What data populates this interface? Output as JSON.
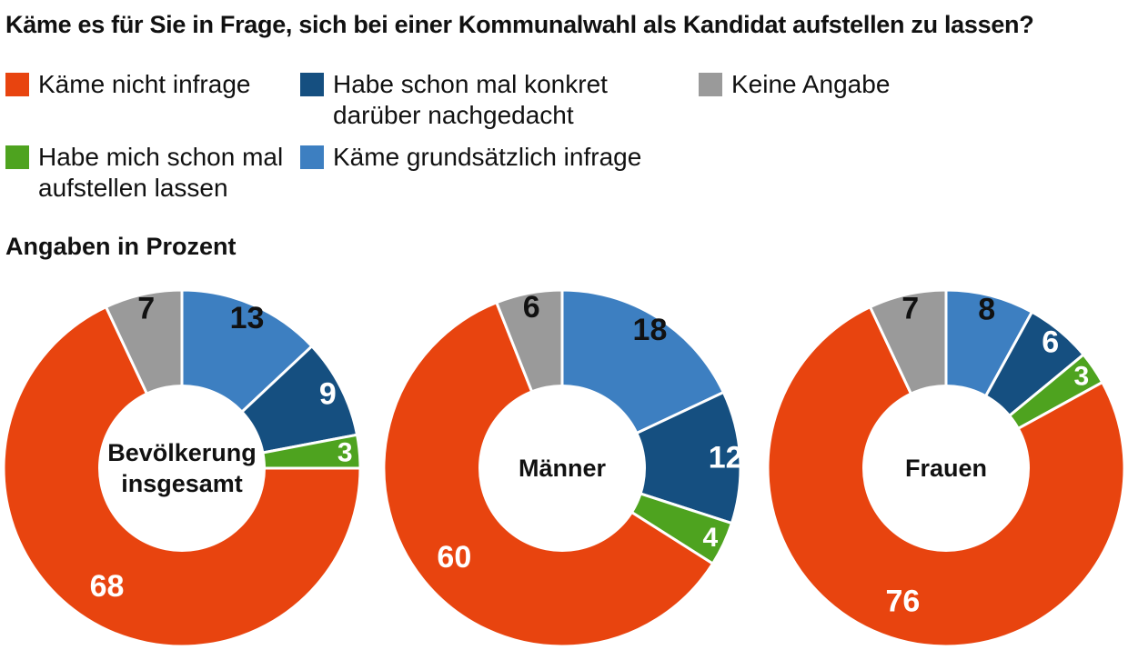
{
  "title": "Käme es für Sie in Frage, sich bei einer Kommunalwahl als Kandidat aufstellen zu lassen?",
  "subtitle": "Angaben in Prozent",
  "legend": [
    {
      "label": "Käme nicht infrage",
      "color": "#e8440f"
    },
    {
      "label": "Habe schon mal konkret darüber nachgedacht",
      "color": "#154f80"
    },
    {
      "label": "Keine Angabe",
      "color": "#9a9a9a"
    },
    {
      "label": "Habe mich schon mal aufstellen lassen",
      "color": "#4ea31f"
    },
    {
      "label": "Käme grundsätzlich infrage",
      "color": "#3d7fc1"
    }
  ],
  "chart_data": [
    {
      "type": "pie",
      "center_label": [
        "Bevölkerung",
        "insgesamt"
      ],
      "slices": [
        {
          "category": "Käme grundsätzlich infrage",
          "value": 13
        },
        {
          "category": "Habe schon mal konkret darüber nachgedacht",
          "value": 9
        },
        {
          "category": "Habe mich schon mal aufstellen lassen",
          "value": 3
        },
        {
          "category": "Käme nicht infrage",
          "value": 68
        },
        {
          "category": "Keine Angabe",
          "value": 7
        }
      ]
    },
    {
      "type": "pie",
      "center_label": [
        "Männer"
      ],
      "slices": [
        {
          "category": "Käme grundsätzlich infrage",
          "value": 18
        },
        {
          "category": "Habe schon mal konkret darüber nachgedacht",
          "value": 12
        },
        {
          "category": "Habe mich schon mal aufstellen lassen",
          "value": 4
        },
        {
          "category": "Käme nicht infrage",
          "value": 60
        },
        {
          "category": "Keine Angabe",
          "value": 6
        }
      ]
    },
    {
      "type": "pie",
      "center_label": [
        "Frauen"
      ],
      "slices": [
        {
          "category": "Käme grundsätzlich infrage",
          "value": 8
        },
        {
          "category": "Habe schon mal konkret darüber nachgedacht",
          "value": 6
        },
        {
          "category": "Habe mich schon mal aufstellen lassen",
          "value": 3
        },
        {
          "category": "Käme nicht infrage",
          "value": 76
        },
        {
          "category": "Keine Angabe",
          "value": 7
        }
      ]
    }
  ]
}
